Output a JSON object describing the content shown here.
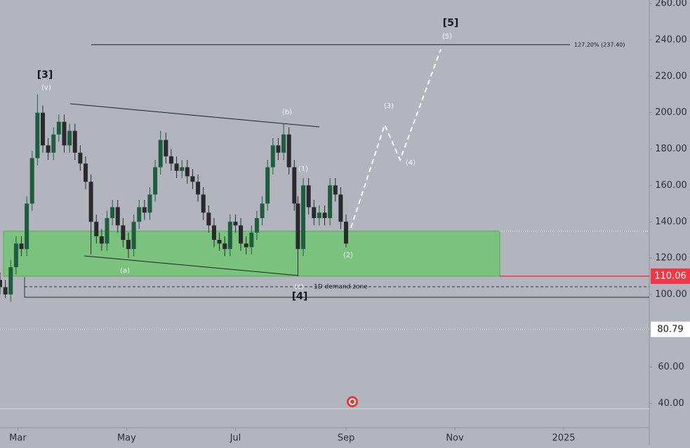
{
  "chart_data": {
    "type": "candlestick",
    "x": [
      -10,
      -7,
      -4,
      -1,
      2,
      5,
      8,
      11,
      14,
      17,
      20,
      23,
      26,
      29,
      32,
      35,
      38,
      41,
      44,
      47,
      50,
      53,
      56,
      59,
      62,
      65,
      68,
      71,
      74,
      77,
      80,
      83,
      86,
      89,
      92,
      95,
      98,
      101,
      104,
      107,
      110,
      113,
      116,
      119,
      122,
      125,
      128,
      131,
      134,
      137,
      140,
      143,
      146,
      149,
      152,
      155,
      157,
      160,
      163,
      166,
      169,
      172,
      175,
      178,
      181,
      184
    ],
    "open": [
      108,
      104,
      100,
      115,
      128,
      125,
      150,
      175,
      200,
      182,
      178,
      188,
      195,
      182,
      190,
      178,
      172,
      162,
      140,
      132,
      128,
      142,
      148,
      138,
      130,
      125,
      140,
      148,
      145,
      155,
      170,
      185,
      176,
      172,
      168,
      170,
      165,
      162,
      155,
      145,
      138,
      130,
      128,
      125,
      140,
      138,
      128,
      126,
      134,
      142,
      150,
      170,
      182,
      178,
      188,
      170,
      150,
      125,
      160,
      148,
      142,
      145,
      142,
      160,
      155,
      140
    ],
    "high": [
      112,
      108,
      119,
      132,
      132,
      154,
      179,
      210,
      204,
      186,
      192,
      199,
      199,
      194,
      194,
      182,
      176,
      166,
      144,
      136,
      146,
      152,
      152,
      142,
      134,
      144,
      152,
      152,
      159,
      174,
      190,
      189,
      180,
      176,
      174,
      174,
      169,
      166,
      159,
      149,
      142,
      134,
      132,
      144,
      144,
      142,
      132,
      138,
      146,
      154,
      174,
      186,
      186,
      194,
      192,
      174,
      154,
      164,
      164,
      152,
      149,
      149,
      164,
      164,
      159,
      144
    ],
    "low": [
      100,
      98,
      96,
      111,
      121,
      121,
      146,
      171,
      178,
      174,
      174,
      184,
      178,
      178,
      174,
      168,
      158,
      122,
      128,
      124,
      124,
      138,
      134,
      126,
      120,
      121,
      136,
      141,
      141,
      151,
      166,
      172,
      168,
      164,
      164,
      161,
      158,
      151,
      141,
      134,
      126,
      124,
      121,
      121,
      134,
      124,
      122,
      122,
      130,
      138,
      146,
      166,
      174,
      174,
      166,
      146,
      110,
      121,
      144,
      138,
      138,
      138,
      138,
      151,
      136,
      126
    ],
    "close": [
      104,
      100,
      115,
      128,
      125,
      150,
      175,
      200,
      182,
      178,
      188,
      195,
      182,
      190,
      178,
      172,
      162,
      140,
      132,
      128,
      142,
      148,
      138,
      130,
      125,
      140,
      148,
      145,
      155,
      170,
      185,
      176,
      172,
      168,
      170,
      165,
      162,
      155,
      145,
      138,
      130,
      128,
      125,
      140,
      138,
      128,
      126,
      134,
      142,
      150,
      170,
      182,
      178,
      188,
      170,
      150,
      125,
      160,
      148,
      142,
      145,
      142,
      160,
      155,
      140,
      128
    ],
    "up_color": "#1e5e3e",
    "down_color": "#2a2a2e",
    "xlim": [
      -10,
      354
    ],
    "ylim": [
      26.7,
      262
    ],
    "xticks": [
      {
        "value": 0,
        "label": "Mar"
      },
      {
        "value": 61,
        "label": "May"
      },
      {
        "value": 122,
        "label": "Jul"
      },
      {
        "value": 184,
        "label": "Sep"
      },
      {
        "value": 245,
        "label": "Nov"
      },
      {
        "value": 306,
        "label": "2025"
      }
    ],
    "yticks": [
      {
        "value": 40,
        "label": "40.00"
      },
      {
        "value": 60,
        "label": "60.00"
      },
      {
        "value": 80,
        "label": "80.00"
      },
      {
        "value": 100,
        "label": "100.00"
      },
      {
        "value": 120,
        "label": "120.00"
      },
      {
        "value": 140,
        "label": "140.00"
      },
      {
        "value": 160,
        "label": "160.00"
      },
      {
        "value": 180,
        "label": "180.00"
      },
      {
        "value": 200,
        "label": "200.00"
      },
      {
        "value": 220,
        "label": "220.00"
      },
      {
        "value": 240,
        "label": "240.00"
      },
      {
        "value": 260,
        "label": "260.00"
      }
    ],
    "demand_zone": [
      110.06,
      134.8
    ],
    "demand_zone_label": "1D demand zone",
    "zone_color": "#7cc27f",
    "fib_level": 237.4,
    "fib_label": "127.20% (237.40)",
    "price_labels": [
      {
        "value": 110.06,
        "label": "110.06",
        "color": "#f23645"
      },
      {
        "value": 80.79,
        "label": "80.79",
        "color": "#ffffff"
      }
    ],
    "annotations": [
      "[3]",
      "(v)",
      "(b)",
      "(a)",
      "(c)",
      "[4]",
      "(1)",
      "(2)",
      "(3)",
      "(4)",
      "(5)",
      "[5]"
    ]
  }
}
